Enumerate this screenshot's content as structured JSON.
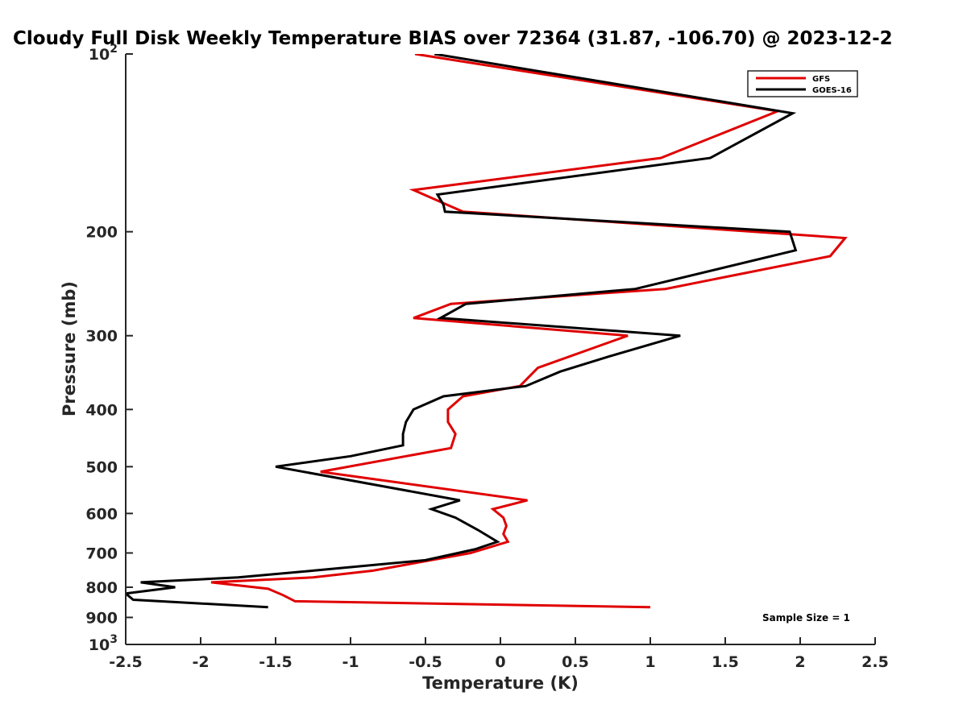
{
  "chart_data": {
    "type": "line",
    "title": "Cloudy Full Disk Weekly Temperature BIAS over 72364 (31.87, -106.70) @ 2023-12-2",
    "xlabel": "Temperature (K)",
    "ylabel": "Pressure (mb)",
    "xlim": [
      -2.5,
      2.5
    ],
    "ylim": [
      100,
      1000
    ],
    "yscale": "log",
    "y_reversed": true,
    "x_ticks": [
      "-2.5",
      "-2",
      "-1.5",
      "-1",
      "-0.5",
      "0",
      "0.5",
      "1",
      "1.5",
      "2",
      "2.5"
    ],
    "x_tick_values": [
      -2.5,
      -2,
      -1.5,
      -1,
      -0.5,
      0,
      0.5,
      1,
      1.5,
      2,
      2.5
    ],
    "y_ticks": [
      {
        "value": 100,
        "base": "10",
        "exp": "2"
      },
      {
        "value": 200,
        "label": "200"
      },
      {
        "value": 300,
        "label": "300"
      },
      {
        "value": 400,
        "label": "400"
      },
      {
        "value": 500,
        "label": "500"
      },
      {
        "value": 600,
        "label": "600"
      },
      {
        "value": 700,
        "label": "700"
      },
      {
        "value": 800,
        "label": "800"
      },
      {
        "value": 900,
        "label": "900"
      },
      {
        "value": 1000,
        "base": "10",
        "exp": "3"
      }
    ],
    "legend_position": "top-right",
    "grid": false,
    "annotation": "Sample Size = 1",
    "series": [
      {
        "name": "GFS",
        "color": "#e00000",
        "points": [
          [
            -0.57,
            100
          ],
          [
            1.85,
            125
          ],
          [
            1.07,
            150
          ],
          [
            -0.58,
            170
          ],
          [
            -0.25,
            185
          ],
          [
            2.3,
            205
          ],
          [
            2.2,
            220
          ],
          [
            1.1,
            250
          ],
          [
            -0.33,
            265
          ],
          [
            -0.58,
            280
          ],
          [
            0.85,
            300
          ],
          [
            0.25,
            340
          ],
          [
            0.13,
            365
          ],
          [
            -0.25,
            380
          ],
          [
            -0.35,
            400
          ],
          [
            -0.35,
            420
          ],
          [
            -0.3,
            440
          ],
          [
            -0.33,
            465
          ],
          [
            -1.2,
            510
          ],
          [
            0.18,
            570
          ],
          [
            -0.05,
            590
          ],
          [
            0.02,
            610
          ],
          [
            0.04,
            630
          ],
          [
            0.02,
            650
          ],
          [
            0.05,
            670
          ],
          [
            -0.2,
            700
          ],
          [
            -0.85,
            750
          ],
          [
            -1.25,
            770
          ],
          [
            -1.93,
            785
          ],
          [
            -1.55,
            805
          ],
          [
            -1.45,
            825
          ],
          [
            -1.37,
            845
          ],
          [
            1.0,
            865
          ]
        ]
      },
      {
        "name": "GOES-16",
        "color": "#000000",
        "points": [
          [
            -0.44,
            100
          ],
          [
            1.95,
            126
          ],
          [
            1.4,
            150
          ],
          [
            -0.42,
            173
          ],
          [
            -0.38,
            180
          ],
          [
            -0.37,
            185
          ],
          [
            1.93,
            200
          ],
          [
            1.97,
            215
          ],
          [
            0.9,
            250
          ],
          [
            -0.23,
            265
          ],
          [
            -0.4,
            280
          ],
          [
            1.2,
            300
          ],
          [
            0.73,
            325
          ],
          [
            0.4,
            345
          ],
          [
            0.17,
            365
          ],
          [
            -0.38,
            380
          ],
          [
            -0.58,
            400
          ],
          [
            -0.63,
            420
          ],
          [
            -0.65,
            440
          ],
          [
            -0.65,
            460
          ],
          [
            -1.0,
            480
          ],
          [
            -1.5,
            500
          ],
          [
            -0.27,
            570
          ],
          [
            -0.46,
            590
          ],
          [
            -0.3,
            610
          ],
          [
            -0.15,
            640
          ],
          [
            -0.02,
            670
          ],
          [
            -0.17,
            690
          ],
          [
            -0.5,
            720
          ],
          [
            -1.25,
            750
          ],
          [
            -1.75,
            770
          ],
          [
            -2.4,
            785
          ],
          [
            -2.17,
            800
          ],
          [
            -2.5,
            820
          ],
          [
            -2.45,
            840
          ],
          [
            -1.55,
            865
          ]
        ]
      }
    ]
  }
}
